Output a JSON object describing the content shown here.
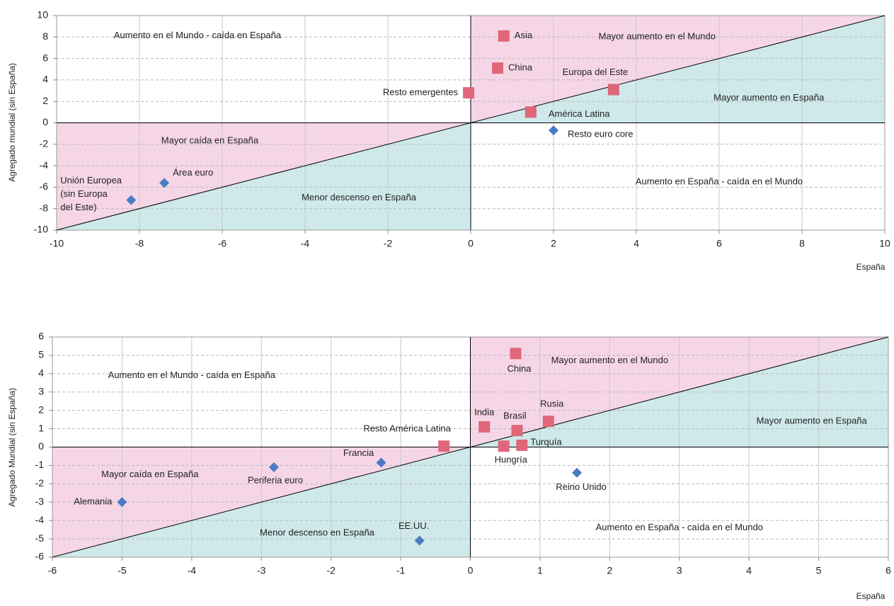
{
  "chart_data": [
    {
      "type": "scatter",
      "xlabel": "España",
      "ylabel": "Agregado mundial (sin España)",
      "xlim": [
        -10,
        10
      ],
      "ylim": [
        -10,
        10
      ],
      "xticks": [
        -10,
        -8,
        -6,
        -4,
        -2,
        0,
        2,
        4,
        6,
        8,
        10
      ],
      "yticks": [
        -10,
        -8,
        -6,
        -4,
        -2,
        0,
        2,
        4,
        6,
        8,
        10
      ],
      "grid": true,
      "diagonal": true,
      "upper_color": "#f6d6e6",
      "lower_color": "#cfe9ea",
      "annotations": [
        "Aumento en el Mundo - caída en España",
        "Mayor aumento en el Mundo",
        "Mayor aumento en España",
        "Mayor caída en España",
        "Menor descenso en España",
        "Aumento en España - caída en el Mundo"
      ],
      "series": [
        {
          "marker": "square",
          "color": "#e0667a",
          "labels": [
            "Asia",
            "China",
            "Resto emergentes",
            "Europa del Este",
            "América Latina"
          ],
          "x": [
            0.8,
            0.65,
            -0.05,
            3.45,
            1.45
          ],
          "values": [
            8.1,
            5.1,
            2.8,
            3.1,
            1.0
          ]
        },
        {
          "marker": "diamond",
          "color": "#4a7cc4",
          "labels": [
            "Resto euro core",
            "Área euro",
            [
              "Unión Europea",
              "(sin Europa",
              "del Este)"
            ]
          ],
          "x": [
            2.0,
            -7.4,
            -8.2
          ],
          "values": [
            -0.7,
            -5.6,
            -7.2
          ]
        }
      ]
    },
    {
      "type": "scatter",
      "xlabel": "España",
      "ylabel": "Agregado Mundial (sin España)",
      "xlim": [
        -6,
        6
      ],
      "ylim": [
        -6,
        6
      ],
      "xticks": [
        -6,
        -5,
        -4,
        -3,
        -2,
        -1,
        0,
        1,
        2,
        3,
        4,
        5,
        6
      ],
      "yticks": [
        -6,
        -5,
        -4,
        -3,
        -2,
        -1,
        0,
        1,
        2,
        3,
        4,
        5,
        6
      ],
      "grid": true,
      "diagonal": true,
      "upper_color": "#f6d6e6",
      "lower_color": "#cfe9ea",
      "annotations": [
        "Aumento en el Mundo - caída en España",
        "Mayor aumento en el Mundo",
        "Mayor aumento en España",
        "Mayor caída en España",
        "Menor descenso en España",
        "Aumento en España - caída en el Mundo"
      ],
      "series": [
        {
          "marker": "square",
          "color": "#e0667a",
          "labels": [
            "China",
            "India",
            "Brasil",
            "Rusia",
            "Resto América Latina",
            "Hungría",
            "Turquía"
          ],
          "x": [
            0.65,
            0.2,
            0.67,
            1.12,
            -0.38,
            0.48,
            0.74
          ],
          "values": [
            5.1,
            1.1,
            0.9,
            1.4,
            0.05,
            0.05,
            0.1
          ]
        },
        {
          "marker": "diamond",
          "color": "#4a7cc4",
          "labels": [
            "Francia",
            "Periferia euro",
            "Alemania",
            "EE.UU.",
            "Reino Unido"
          ],
          "x": [
            -1.28,
            -2.82,
            -5.0,
            -0.73,
            1.53
          ],
          "values": [
            -0.85,
            -1.1,
            -3.0,
            -5.1,
            -1.4
          ]
        }
      ]
    }
  ]
}
